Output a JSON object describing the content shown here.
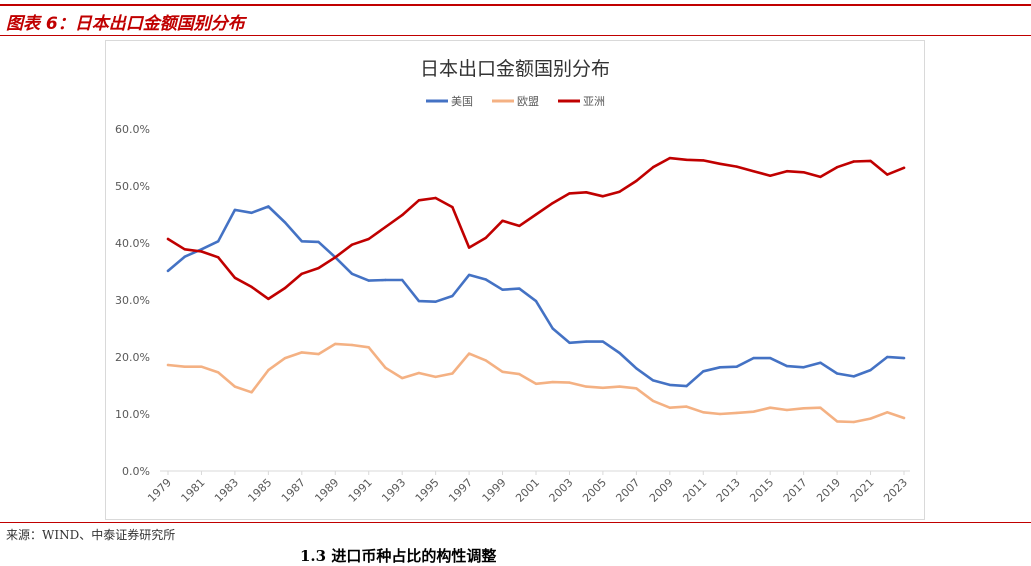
{
  "figure": {
    "title": "图表 6：日本出口金额国别分布",
    "source": "来源：WIND、中泰证券研究所",
    "next_heading": "1.3 进口币种占比的构性调整"
  },
  "colors": {
    "accent": "#c00000",
    "usa": "#4472c4",
    "eu": "#f4b183",
    "asia": "#c00000"
  },
  "chart_data": {
    "type": "line",
    "title": "日本出口金额国别分布",
    "xlabel": "",
    "ylabel": "",
    "ylim": [
      0,
      60
    ],
    "y_ticks": [
      "0.0%",
      "10.0%",
      "20.0%",
      "30.0%",
      "40.0%",
      "50.0%",
      "60.0%"
    ],
    "x_tick_labels": [
      "1979",
      "1981",
      "1983",
      "1985",
      "1987",
      "1989",
      "1991",
      "1993",
      "1995",
      "1997",
      "1999",
      "2001",
      "2003",
      "2005",
      "2007",
      "2009",
      "2011",
      "2013",
      "2015",
      "2017",
      "2019",
      "2021",
      "2023"
    ],
    "x": [
      1979,
      1980,
      1981,
      1982,
      1983,
      1984,
      1985,
      1986,
      1987,
      1988,
      1989,
      1990,
      1991,
      1992,
      1993,
      1994,
      1995,
      1996,
      1997,
      1998,
      1999,
      2000,
      2001,
      2002,
      2003,
      2004,
      2005,
      2006,
      2007,
      2008,
      2009,
      2010,
      2011,
      2012,
      2013,
      2014,
      2015,
      2016,
      2017,
      2018,
      2019,
      2020,
      2021,
      2022,
      2023
    ],
    "grid": false,
    "legend_position": "top-center",
    "series": [
      {
        "name": "美国",
        "color": "#4472c4",
        "values": [
          35.1,
          37.6,
          38.9,
          40.3,
          45.8,
          45.3,
          46.4,
          43.6,
          40.3,
          40.2,
          37.5,
          34.6,
          33.4,
          33.5,
          33.5,
          29.8,
          29.7,
          30.7,
          34.4,
          33.6,
          31.8,
          32.0,
          29.8,
          25.0,
          22.5,
          22.7,
          22.7,
          20.7,
          18.0,
          15.9,
          15.1,
          14.9,
          17.5,
          18.2,
          18.3,
          19.8,
          19.8,
          18.4,
          18.2,
          19.0,
          17.1,
          16.6,
          17.7,
          20.0,
          19.8
        ]
      },
      {
        "name": "欧盟",
        "color": "#f4b183",
        "values": [
          18.6,
          18.3,
          18.3,
          17.3,
          14.8,
          13.8,
          17.7,
          19.8,
          20.8,
          20.5,
          22.3,
          22.1,
          21.7,
          18.1,
          16.3,
          17.2,
          16.5,
          17.1,
          20.6,
          19.4,
          17.4,
          17.0,
          15.3,
          15.6,
          15.5,
          14.8,
          14.6,
          14.8,
          14.5,
          12.3,
          11.1,
          11.3,
          10.3,
          10.0,
          10.2,
          10.4,
          11.1,
          10.7,
          11.0,
          11.1,
          8.7,
          8.6,
          9.2,
          10.3,
          9.3
        ]
      },
      {
        "name": "亚洲",
        "color": "#c00000",
        "values": [
          40.7,
          38.9,
          38.5,
          37.5,
          33.9,
          32.3,
          30.2,
          32.1,
          34.6,
          35.6,
          37.5,
          39.7,
          40.7,
          42.8,
          44.9,
          47.5,
          47.9,
          46.3,
          39.2,
          40.9,
          43.9,
          43.0,
          45.0,
          47.0,
          48.7,
          48.9,
          48.2,
          49.0,
          50.9,
          53.3,
          54.9,
          54.6,
          54.5,
          53.9,
          53.4,
          52.6,
          51.8,
          52.6,
          52.4,
          51.6,
          53.3,
          54.3,
          54.4,
          52.0,
          53.2
        ]
      }
    ]
  }
}
